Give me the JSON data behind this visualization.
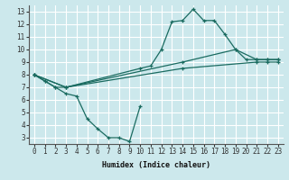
{
  "xlabel": "Humidex (Indice chaleur)",
  "ylabel": "",
  "xlim": [
    -0.5,
    23.5
  ],
  "ylim": [
    2.5,
    13.5
  ],
  "xticks": [
    0,
    1,
    2,
    3,
    4,
    5,
    6,
    7,
    8,
    9,
    10,
    11,
    12,
    13,
    14,
    15,
    16,
    17,
    18,
    19,
    20,
    21,
    22,
    23
  ],
  "yticks": [
    3,
    4,
    5,
    6,
    7,
    8,
    9,
    10,
    11,
    12,
    13
  ],
  "bg_color": "#cce8ec",
  "grid_color": "#ffffff",
  "line_color": "#1a6b60",
  "lines": [
    {
      "x": [
        0,
        1,
        2,
        3,
        4,
        5,
        6,
        7,
        8,
        9,
        10
      ],
      "y": [
        8,
        7.5,
        7,
        6.5,
        6.3,
        4.5,
        3.7,
        3.0,
        3.0,
        2.7,
        5.5
      ]
    },
    {
      "x": [
        0,
        1,
        2,
        3,
        10,
        11,
        12,
        13,
        14,
        15,
        16,
        17,
        18,
        19,
        20,
        21,
        22,
        23
      ],
      "y": [
        8,
        7.5,
        7,
        7,
        8.5,
        8.7,
        10.0,
        12.2,
        12.3,
        13.2,
        12.3,
        12.3,
        11.2,
        10.0,
        9.2,
        9.2,
        9.2,
        9.2
      ]
    },
    {
      "x": [
        0,
        3,
        14,
        19,
        21,
        22,
        23
      ],
      "y": [
        8,
        7,
        9.0,
        10.0,
        9.2,
        9.2,
        9.2
      ]
    },
    {
      "x": [
        0,
        3,
        14,
        21,
        22,
        23
      ],
      "y": [
        8,
        7,
        8.5,
        9.0,
        9.0,
        9.0
      ]
    }
  ]
}
